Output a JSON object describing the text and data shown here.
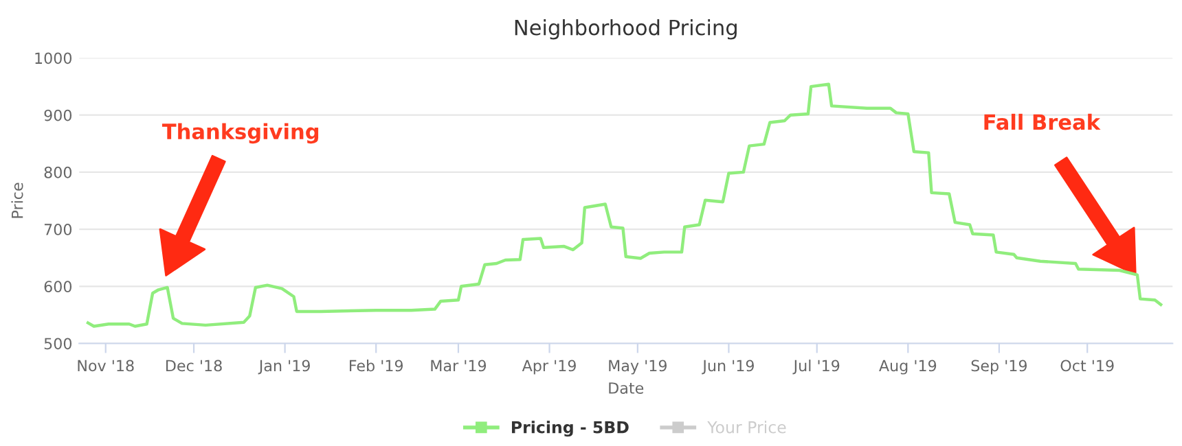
{
  "chart_data": {
    "type": "line",
    "title": "Neighborhood Pricing",
    "xlabel": "Date",
    "ylabel": "Price",
    "xlim": [
      "2018-10-23",
      "2019-10-30"
    ],
    "ylim": [
      500,
      1000
    ],
    "yticks": [
      500,
      600,
      700,
      800,
      900,
      1000
    ],
    "xticks": [
      {
        "value": "2018-11-01",
        "label": "Nov '18"
      },
      {
        "value": "2018-12-01",
        "label": "Dec '18"
      },
      {
        "value": "2019-01-01",
        "label": "Jan '19"
      },
      {
        "value": "2019-02-01",
        "label": "Feb '19"
      },
      {
        "value": "2019-03-01",
        "label": "Mar '19"
      },
      {
        "value": "2019-04-01",
        "label": "Apr '19"
      },
      {
        "value": "2019-05-01",
        "label": "May '19"
      },
      {
        "value": "2019-06-01",
        "label": "Jun '19"
      },
      {
        "value": "2019-07-01",
        "label": "Jul '19"
      },
      {
        "value": "2019-08-01",
        "label": "Aug '19"
      },
      {
        "value": "2019-09-01",
        "label": "Sep '19"
      },
      {
        "value": "2019-10-01",
        "label": "Oct '19"
      }
    ],
    "grid": "y",
    "legend": "bottom",
    "series": [
      {
        "name": "Pricing - 5BD",
        "color": "#90ed7d",
        "x": [
          "2018-10-26",
          "2018-10-28",
          "2018-11-02",
          "2018-11-09",
          "2018-11-11",
          "2018-11-15",
          "2018-11-17",
          "2018-11-19",
          "2018-11-22",
          "2018-11-24",
          "2018-11-27",
          "2018-12-05",
          "2018-12-18",
          "2018-12-20",
          "2018-12-22",
          "2018-12-26",
          "2018-12-31",
          "2019-01-04",
          "2019-01-05",
          "2019-01-13",
          "2019-02-01",
          "2019-02-13",
          "2019-02-21",
          "2019-02-23",
          "2019-03-01",
          "2019-03-02",
          "2019-03-08",
          "2019-03-10",
          "2019-03-14",
          "2019-03-17",
          "2019-03-22",
          "2019-03-23",
          "2019-03-29",
          "2019-03-30",
          "2019-04-06",
          "2019-04-09",
          "2019-04-12",
          "2019-04-13",
          "2019-04-20",
          "2019-04-22",
          "2019-04-26",
          "2019-04-27",
          "2019-05-02",
          "2019-05-05",
          "2019-05-10",
          "2019-05-16",
          "2019-05-17",
          "2019-05-22",
          "2019-05-24",
          "2019-05-30",
          "2019-06-01",
          "2019-06-06",
          "2019-06-08",
          "2019-06-13",
          "2019-06-15",
          "2019-06-20",
          "2019-06-22",
          "2019-06-28",
          "2019-06-29",
          "2019-07-05",
          "2019-07-06",
          "2019-07-18",
          "2019-07-26",
          "2019-07-28",
          "2019-08-01",
          "2019-08-03",
          "2019-08-08",
          "2019-08-09",
          "2019-08-15",
          "2019-08-17",
          "2019-08-22",
          "2019-08-23",
          "2019-08-30",
          "2019-08-31",
          "2019-09-06",
          "2019-09-07",
          "2019-09-15",
          "2019-09-27",
          "2019-09-28",
          "2019-10-12",
          "2019-10-18",
          "2019-10-19",
          "2019-10-24",
          "2019-10-26"
        ],
        "values": [
          536,
          530,
          534,
          534,
          530,
          534,
          588,
          594,
          598,
          544,
          535,
          532,
          537,
          548,
          598,
          602,
          596,
          582,
          556,
          556,
          558,
          558,
          560,
          574,
          576,
          600,
          604,
          638,
          640,
          646,
          647,
          682,
          684,
          668,
          670,
          664,
          676,
          738,
          744,
          704,
          702,
          652,
          649,
          658,
          660,
          660,
          704,
          708,
          751,
          748,
          798,
          800,
          846,
          849,
          887,
          890,
          900,
          902,
          950,
          954,
          916,
          912,
          912,
          904,
          902,
          836,
          834,
          764,
          762,
          712,
          708,
          692,
          690,
          660,
          656,
          650,
          644,
          640,
          630,
          628,
          620,
          578,
          576,
          568
        ]
      },
      {
        "name": "Your Price",
        "color": "#cccccc"
      }
    ],
    "annotations": [
      "Thanksgiving",
      "Fall Break"
    ]
  }
}
